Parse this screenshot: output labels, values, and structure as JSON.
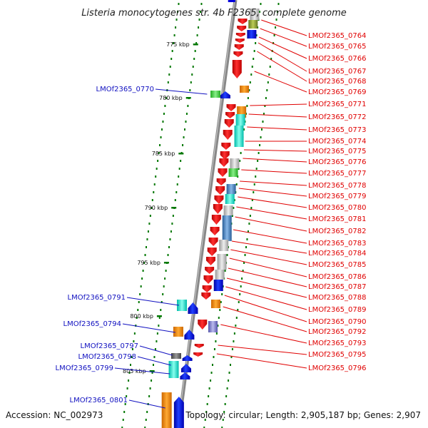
{
  "title": "Listeria monocytogenes str. 4b F2365, complete genome",
  "footer": {
    "accession": "Accession: NC_002973",
    "stats": "Topology: circular; Length: 2,905,187 bp; Genes: 2,907"
  },
  "axis_ticks": [
    "775 kbp",
    "780 kbp",
    "785 kbp",
    "790 kbp",
    "795 kbp",
    "800 kbp",
    "805 kbp"
  ],
  "colors": {
    "forward_strand": "#e00000",
    "reverse_strand": "#0000dd",
    "backbone": "#888888",
    "tick": "#007700",
    "label_right": "#e00000",
    "label_left": "#1010c0"
  },
  "genes_right": [
    "LMOf2365_0764",
    "LMOf2365_0765",
    "LMOf2365_0766",
    "LMOf2365_0767",
    "LMOf2365_0768",
    "LMOf2365_0769",
    "LMOf2365_0771",
    "LMOf2365_0772",
    "LMOf2365_0773",
    "LMOf2365_0774",
    "LMOf2365_0775",
    "LMOf2365_0776",
    "LMOf2365_0777",
    "LMOf2365_0778",
    "LMOf2365_0779",
    "LMOf2365_0780",
    "LMOf2365_0781",
    "LMOf2365_0782",
    "LMOf2365_0783",
    "LMOf2365_0784",
    "LMOf2365_0785",
    "LMOf2365_0786",
    "LMOf2365_0787",
    "LMOf2365_0788",
    "LMOf2365_0789",
    "LMOf2365_0790",
    "LMOf2365_0792",
    "LMOf2365_0793",
    "LMOf2365_0795",
    "LMOf2365_0796"
  ],
  "genes_left": [
    "LMOf2365_0770",
    "LMOf2365_0791",
    "LMOf2365_0794",
    "LMOf2365_0797",
    "LMOf2365_0798",
    "LMOf2365_0799",
    "LMOf2365_0801"
  ]
}
